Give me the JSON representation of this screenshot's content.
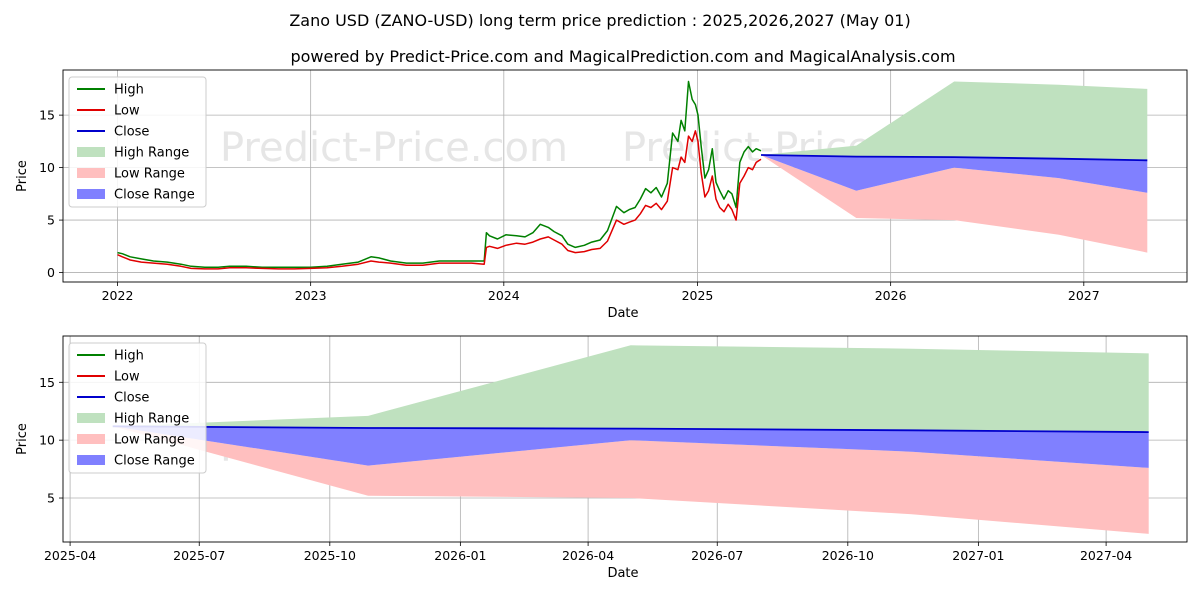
{
  "title": "Zano USD (ZANO-USD) long term price prediction : 2025,2026,2027 (May 01)",
  "subtitle": "powered by Predict-Price.com and MagicalPrediction.com and MagicalAnalysis.com",
  "watermark": "Predict-Price.com",
  "colors": {
    "high": "#008000",
    "low": "#e00000",
    "close": "#0000cc",
    "high_range": "#bfe1bf",
    "low_range": "#ffbfbf",
    "close_range": "#8080ff"
  },
  "chart_data": [
    {
      "type": "line",
      "panel": "top",
      "xlabel": "Date",
      "ylabel": "Price",
      "xlim": [
        "2021-09-20",
        "2027-07-15"
      ],
      "ylim": [
        -0.9,
        19.3
      ],
      "x_tick_labels": [
        "2022",
        "2023",
        "2024",
        "2025",
        "2026",
        "2027"
      ],
      "y_tick_labels": [
        "0",
        "5",
        "10",
        "15"
      ],
      "grid": true,
      "legend": {
        "location": "top-left",
        "entries": [
          "High",
          "Low",
          "Close",
          "High Range",
          "Low Range",
          "Close Range"
        ]
      },
      "history": {
        "x": [
          "2022-01-01",
          "2022-01-10",
          "2022-01-25",
          "2022-02-15",
          "2022-03-10",
          "2022-04-05",
          "2022-05-01",
          "2022-05-20",
          "2022-06-15",
          "2022-07-10",
          "2022-08-01",
          "2022-09-01",
          "2022-10-01",
          "2022-11-01",
          "2022-12-01",
          "2023-01-01",
          "2023-02-01",
          "2023-03-01",
          "2023-04-01",
          "2023-04-25",
          "2023-05-10",
          "2023-06-01",
          "2023-07-01",
          "2023-08-01",
          "2023-09-01",
          "2023-10-01",
          "2023-11-01",
          "2023-11-25",
          "2023-11-29",
          "2023-12-05",
          "2023-12-20",
          "2024-01-05",
          "2024-01-25",
          "2024-02-10",
          "2024-02-25",
          "2024-03-10",
          "2024-03-25",
          "2024-04-05",
          "2024-04-20",
          "2024-05-01",
          "2024-05-15",
          "2024-06-01",
          "2024-06-15",
          "2024-07-01",
          "2024-07-15",
          "2024-08-01",
          "2024-08-15",
          "2024-08-25",
          "2024-09-05",
          "2024-09-15",
          "2024-09-25",
          "2024-10-05",
          "2024-10-15",
          "2024-10-25",
          "2024-11-05",
          "2024-11-15",
          "2024-11-25",
          "2024-12-01",
          "2024-12-08",
          "2024-12-15",
          "2024-12-22",
          "2024-12-28",
          "2025-01-02",
          "2025-01-08",
          "2025-01-15",
          "2025-01-22",
          "2025-01-29",
          "2025-02-05",
          "2025-02-12",
          "2025-02-20",
          "2025-02-28",
          "2025-03-07",
          "2025-03-15",
          "2025-03-22",
          "2025-03-30",
          "2025-04-07",
          "2025-04-15",
          "2025-04-22",
          "2025-05-01"
        ],
        "close": [
          1.8,
          1.6,
          1.3,
          1.1,
          1.0,
          0.9,
          0.7,
          0.5,
          0.4,
          0.4,
          0.5,
          0.5,
          0.45,
          0.4,
          0.4,
          0.45,
          0.5,
          0.7,
          0.9,
          1.3,
          1.2,
          1.0,
          0.8,
          0.8,
          1.0,
          1.0,
          1.0,
          1.0,
          2.8,
          2.9,
          2.6,
          3.0,
          3.1,
          3.0,
          3.2,
          3.6,
          3.9,
          3.5,
          3.1,
          2.4,
          2.1,
          2.3,
          2.5,
          2.6,
          3.4,
          5.8,
          5.1,
          5.4,
          5.6,
          6.3,
          7.2,
          6.9,
          7.4,
          6.6,
          7.6,
          11.8,
          11.2,
          12.8,
          12.0,
          15.5,
          14.0,
          15.0,
          14.0,
          11.0,
          8.0,
          8.8,
          10.5,
          7.8,
          7.0,
          6.4,
          7.2,
          6.8,
          5.5,
          9.5,
          10.2,
          11.0,
          10.5,
          11.1,
          11.2
        ],
        "high": [
          1.9,
          1.8,
          1.5,
          1.3,
          1.1,
          1.0,
          0.8,
          0.6,
          0.5,
          0.5,
          0.6,
          0.6,
          0.5,
          0.5,
          0.5,
          0.5,
          0.6,
          0.8,
          1.0,
          1.5,
          1.4,
          1.1,
          0.9,
          0.9,
          1.1,
          1.1,
          1.1,
          1.1,
          3.8,
          3.5,
          3.2,
          3.6,
          3.5,
          3.4,
          3.8,
          4.6,
          4.3,
          3.9,
          3.5,
          2.7,
          2.4,
          2.6,
          2.9,
          3.1,
          4.0,
          6.3,
          5.7,
          6.0,
          6.2,
          7.0,
          8.0,
          7.6,
          8.1,
          7.2,
          8.5,
          13.3,
          12.5,
          14.5,
          13.5,
          18.2,
          16.5,
          16.0,
          15.0,
          12.0,
          9.0,
          9.8,
          11.8,
          8.6,
          7.8,
          7.0,
          7.8,
          7.5,
          6.2,
          10.5,
          11.5,
          12.0,
          11.5,
          11.8,
          11.6
        ],
        "low": [
          1.7,
          1.5,
          1.2,
          1.0,
          0.9,
          0.8,
          0.6,
          0.4,
          0.35,
          0.35,
          0.45,
          0.45,
          0.4,
          0.35,
          0.35,
          0.4,
          0.45,
          0.6,
          0.8,
          1.1,
          1.0,
          0.9,
          0.7,
          0.7,
          0.9,
          0.9,
          0.9,
          0.8,
          2.4,
          2.5,
          2.3,
          2.6,
          2.8,
          2.7,
          2.9,
          3.2,
          3.4,
          3.1,
          2.7,
          2.1,
          1.9,
          2.0,
          2.2,
          2.3,
          3.0,
          5.0,
          4.6,
          4.8,
          5.0,
          5.6,
          6.4,
          6.2,
          6.6,
          6.0,
          6.8,
          10.0,
          9.8,
          11.0,
          10.5,
          13.0,
          12.5,
          13.5,
          12.5,
          9.5,
          7.2,
          7.8,
          9.2,
          7.0,
          6.2,
          5.8,
          6.5,
          6.0,
          5.0,
          8.5,
          9.2,
          10.0,
          9.8,
          10.5,
          10.8
        ]
      },
      "forecast": {
        "x": [
          "2025-05-01",
          "2025-10-28",
          "2026-05-01",
          "2026-11-15",
          "2027-05-01"
        ],
        "high_range": {
          "upper": [
            11.2,
            12.1,
            18.2,
            17.9,
            17.5
          ],
          "lower": [
            11.2,
            11.1,
            11.0,
            10.9,
            10.7
          ]
        },
        "low_range": {
          "upper": [
            11.2,
            7.8,
            10.0,
            9.0,
            7.6
          ],
          "lower": [
            11.2,
            5.2,
            5.0,
            3.6,
            1.9
          ]
        },
        "close_range": {
          "upper": [
            11.2,
            11.1,
            11.0,
            10.9,
            10.7
          ],
          "lower": [
            11.2,
            7.8,
            10.0,
            9.0,
            7.6
          ]
        },
        "close": [
          11.2,
          11.05,
          11.0,
          10.85,
          10.7
        ]
      }
    },
    {
      "type": "line",
      "panel": "bottom",
      "xlabel": "Date",
      "ylabel": "Price",
      "xlim": [
        "2025-03-27",
        "2027-05-28"
      ],
      "ylim": [
        1.2,
        19.0
      ],
      "x_tick_labels": [
        "2025-04",
        "2025-07",
        "2025-10",
        "2026-01",
        "2026-04",
        "2026-07",
        "2026-10",
        "2027-01",
        "2027-04"
      ],
      "y_tick_labels": [
        "5",
        "10",
        "15"
      ],
      "grid": true,
      "legend": {
        "location": "top-left",
        "entries": [
          "High",
          "Low",
          "Close",
          "High Range",
          "Low Range",
          "Close Range"
        ]
      }
    }
  ]
}
